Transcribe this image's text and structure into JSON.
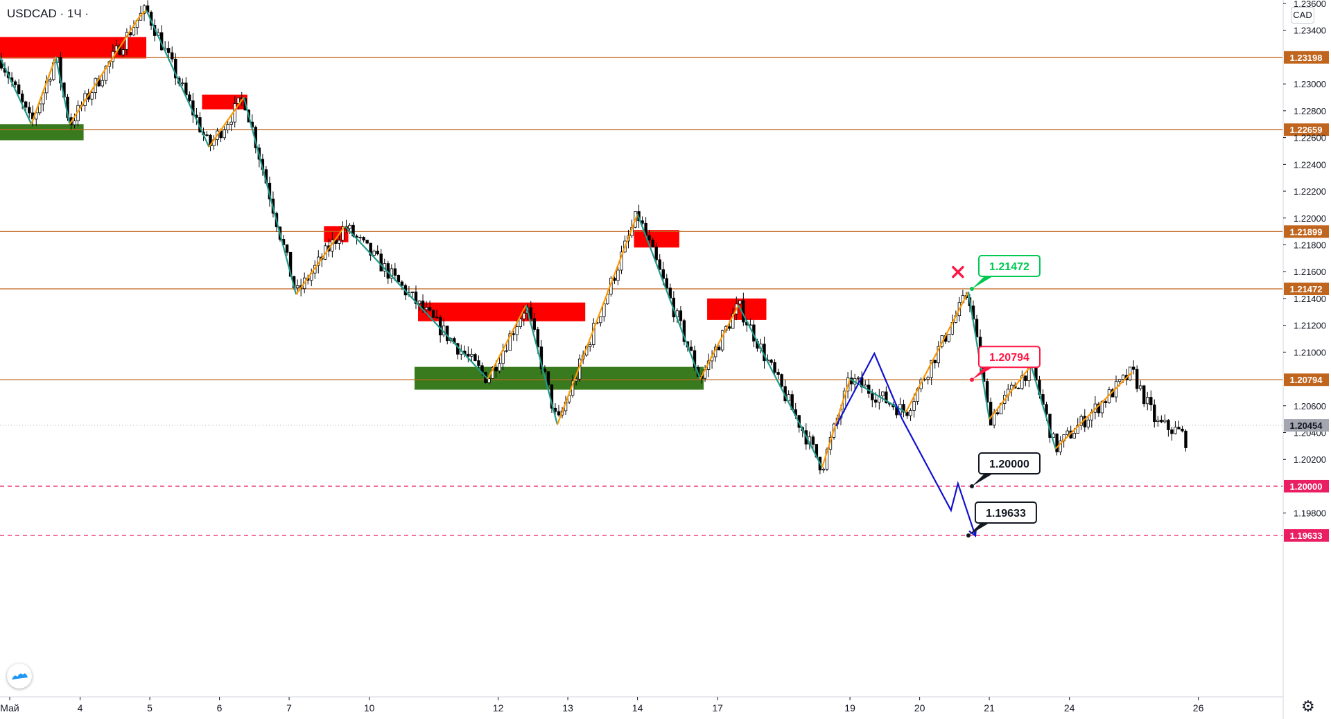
{
  "header": {
    "symbol": "USDCAD · 1Ч ·",
    "currency": "CAD"
  },
  "icons": {
    "settings": "gear-icon",
    "logo": "tradingview-logo-icon",
    "cancel_mark": "x-mark-icon"
  },
  "colors": {
    "level": "#c0651e",
    "price_tag": "#a3a6af",
    "supply": "#ff0000",
    "demand": "#3a7a1f",
    "swing_down": "#1f9a8a",
    "swing_up": "#ff9800",
    "projection": "#1010d0",
    "dashed_level": "#e91e63"
  },
  "chart_data": {
    "type": "candlestick",
    "symbol": "USDCAD",
    "timeframe": "1Ч",
    "ylim": [
      1.195,
      1.236
    ],
    "y_ticks": [
      "1.23600",
      "1.23400",
      "1.23000",
      "1.22800",
      "1.22600",
      "1.22400",
      "1.22200",
      "1.22000",
      "1.21800",
      "1.21600",
      "1.21400",
      "1.21200",
      "1.21000",
      "1.20600",
      "1.20400",
      "1.20200",
      "1.19800"
    ],
    "x_ticks": [
      {
        "label": "Май",
        "x": 0.0
      },
      {
        "label": "4",
        "x": 11.5
      },
      {
        "label": "5",
        "x": 21.5
      },
      {
        "label": "6",
        "x": 31.5
      },
      {
        "label": "7",
        "x": 41.5
      },
      {
        "label": "10",
        "x": 53.0
      },
      {
        "label": "12",
        "x": 71.5
      },
      {
        "label": "13",
        "x": 81.5
      },
      {
        "label": "14",
        "x": 91.5
      },
      {
        "label": "17",
        "x": 103.0
      },
      {
        "label": "19",
        "x": 122.0
      },
      {
        "label": "20",
        "x": 132.0
      },
      {
        "label": "21",
        "x": 142.0
      },
      {
        "label": "24",
        "x": 153.5
      },
      {
        "label": "26",
        "x": 172.0
      }
    ],
    "x_range": [
      0,
      184
    ],
    "last_price": "1.20454",
    "levels": [
      {
        "value": 1.23198,
        "label": "1.23198",
        "style": "solid"
      },
      {
        "value": 1.22659,
        "label": "1.22659",
        "style": "solid"
      },
      {
        "value": 1.21899,
        "label": "1.21899",
        "style": "solid"
      },
      {
        "value": 1.21472,
        "label": "1.21472",
        "style": "solid"
      },
      {
        "value": 1.20794,
        "label": "1.20794",
        "style": "solid"
      },
      {
        "value": 1.2,
        "label": "1.20000",
        "style": "dashed"
      },
      {
        "value": 1.19633,
        "label": "1.19633",
        "style": "dashed"
      }
    ],
    "callouts": [
      {
        "label": "1.21472",
        "color": "green",
        "x": 139.5,
        "y": 1.21472
      },
      {
        "label": "1.20794",
        "color": "red",
        "x": 139.5,
        "y": 1.20794
      },
      {
        "label": "1.20000",
        "color": "black",
        "x": 139.5,
        "y": 1.2
      },
      {
        "label": "1.19633",
        "color": "black",
        "x": 139.0,
        "y": 1.19633
      }
    ],
    "cancel_mark": {
      "x": 137.5,
      "y": 1.2152
    },
    "zones": [
      {
        "kind": "supply",
        "x0": 0.0,
        "x1": 21.0,
        "y0": 1.2335,
        "y1": 1.2319
      },
      {
        "kind": "demand",
        "x0": 0.0,
        "x1": 12.0,
        "y0": 1.227,
        "y1": 1.2258
      },
      {
        "kind": "supply",
        "x0": 29.0,
        "x1": 35.5,
        "y0": 1.2292,
        "y1": 1.2281
      },
      {
        "kind": "supply",
        "x0": 46.5,
        "x1": 50.0,
        "y0": 1.2194,
        "y1": 1.2182
      },
      {
        "kind": "supply",
        "x0": 60.0,
        "x1": 84.0,
        "y0": 1.2137,
        "y1": 1.2123
      },
      {
        "kind": "demand",
        "x0": 59.5,
        "x1": 101.0,
        "y0": 1.2089,
        "y1": 1.2072
      },
      {
        "kind": "supply",
        "x0": 91.0,
        "x1": 97.5,
        "y0": 1.2191,
        "y1": 1.2178
      },
      {
        "kind": "supply",
        "x0": 101.5,
        "x1": 110.0,
        "y0": 1.214,
        "y1": 1.2124
      }
    ],
    "swings": [
      {
        "color": "swing_down",
        "points": [
          [
            0,
            1.232
          ],
          [
            4.5,
            1.227
          ],
          [
            8,
            1.232
          ],
          [
            10,
            1.227
          ]
        ]
      },
      {
        "color": "swing_up",
        "points": [
          [
            4.5,
            1.227
          ],
          [
            8,
            1.232
          ]
        ]
      },
      {
        "color": "swing_up",
        "points": [
          [
            10,
            1.227
          ],
          [
            20,
            1.235
          ],
          [
            21,
            1.2355
          ]
        ]
      },
      {
        "color": "swing_down",
        "points": [
          [
            21,
            1.2355
          ],
          [
            30,
            1.2253
          ]
        ]
      },
      {
        "color": "swing_up",
        "points": [
          [
            30,
            1.2253
          ],
          [
            35,
            1.229
          ]
        ]
      },
      {
        "color": "swing_down",
        "points": [
          [
            35,
            1.229
          ],
          [
            42.5,
            1.2143
          ]
        ]
      },
      {
        "color": "swing_up",
        "points": [
          [
            42.5,
            1.2143
          ],
          [
            49.5,
            1.2194
          ]
        ]
      },
      {
        "color": "swing_down",
        "points": [
          [
            49.5,
            1.2194
          ],
          [
            70,
            1.208
          ]
        ]
      },
      {
        "color": "swing_up",
        "points": [
          [
            70,
            1.208
          ],
          [
            75.5,
            1.2135
          ]
        ]
      },
      {
        "color": "swing_down",
        "points": [
          [
            75.5,
            1.2135
          ],
          [
            80,
            1.2046
          ]
        ]
      },
      {
        "color": "swing_up",
        "points": [
          [
            80,
            1.2046
          ],
          [
            91.5,
            1.2203
          ]
        ]
      },
      {
        "color": "swing_down",
        "points": [
          [
            91.5,
            1.2203
          ],
          [
            100.5,
            1.208
          ]
        ]
      },
      {
        "color": "swing_up",
        "points": [
          [
            100.5,
            1.208
          ],
          [
            106,
            1.2135
          ]
        ]
      },
      {
        "color": "swing_down",
        "points": [
          [
            106,
            1.2135
          ],
          [
            118,
            1.2014
          ]
        ]
      },
      {
        "color": "swing_up",
        "points": [
          [
            118,
            1.2014
          ],
          [
            122,
            1.208
          ]
        ]
      },
      {
        "color": "swing_down",
        "points": [
          [
            122,
            1.208
          ],
          [
            130,
            1.2055
          ]
        ]
      },
      {
        "color": "swing_up",
        "points": [
          [
            130,
            1.2055
          ],
          [
            139,
            1.2145
          ]
        ]
      },
      {
        "color": "swing_down",
        "points": [
          [
            139,
            1.2145
          ],
          [
            142,
            1.205
          ]
        ]
      },
      {
        "color": "swing_up",
        "points": [
          [
            142,
            1.205
          ],
          [
            148,
            1.209
          ]
        ]
      },
      {
        "color": "swing_down",
        "points": [
          [
            148,
            1.209
          ],
          [
            151.5,
            1.2028
          ]
        ]
      },
      {
        "color": "swing_up",
        "points": [
          [
            151.5,
            1.2028
          ],
          [
            162.5,
            1.2085
          ]
        ]
      }
    ],
    "projection": [
      [
        120,
        1.2045
      ],
      [
        125.5,
        1.2099
      ],
      [
        129.5,
        1.205
      ],
      [
        136.5,
        1.1982
      ],
      [
        137.5,
        1.2002
      ],
      [
        140,
        1.1963
      ]
    ],
    "candles_note": "hourly OHLC approximated from the chart path"
  }
}
